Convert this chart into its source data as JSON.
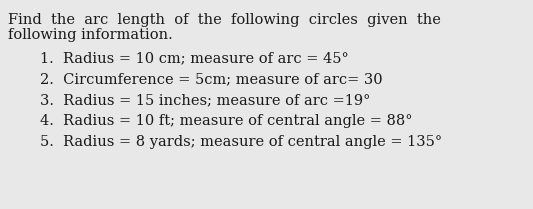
{
  "title_line1": "Find  the  arc  length  of  the  following  circles  given  the",
  "title_line2": "following information.",
  "items": [
    "1.  Radius = 10 cm; measure of arc = 45°",
    "2.  Circumference = 5cm; measure of arc= 30",
    "3.  Radius = 15 inches; measure of arc =19°",
    "4.  Radius = 10 ft; measure of central angle = 88°",
    "5.  Radius = 8 yards; measure of central angle = 135°"
  ],
  "bg_color": "#e8e8e8",
  "text_color": "#1a1a1a",
  "title_fontsize": 10.5,
  "item_fontsize": 10.5,
  "font_family": "DejaVu Serif"
}
